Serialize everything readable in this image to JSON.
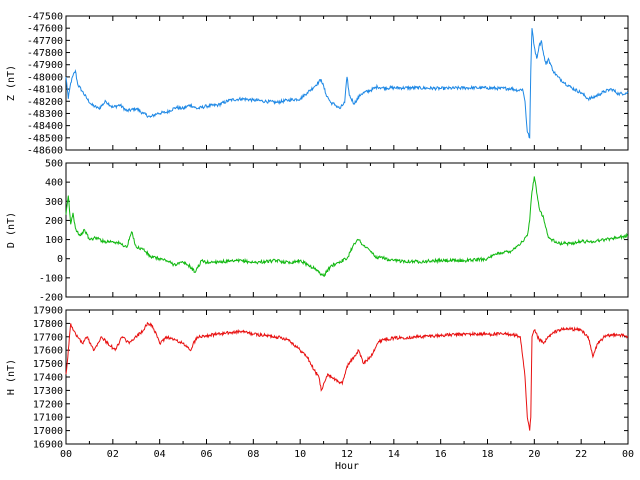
{
  "chart_data": [
    {
      "type": "line",
      "ylabel": "Z (nT)",
      "ylim": [
        -48600,
        -47500
      ],
      "yticks": [
        -47500,
        -47600,
        -47700,
        -47800,
        -47900,
        -48000,
        -48100,
        -48200,
        -48300,
        -48400,
        -48500,
        -48600
      ],
      "xlim": [
        0,
        24
      ],
      "color": "#1E88E5",
      "series": [
        {
          "x": [
            0,
            0.1,
            0.2,
            0.3,
            0.4,
            0.5,
            0.7,
            0.9,
            1.1,
            1.4,
            1.7,
            2,
            2.3,
            2.6,
            3,
            3.3,
            3.6,
            3.9,
            4.3,
            4.7,
            5,
            5.3,
            5.6,
            6,
            6.5,
            7,
            7.5,
            8,
            8.5,
            9,
            9.5,
            10,
            10.3,
            10.6,
            10.9,
            11.1,
            11.3,
            11.5,
            11.7,
            11.9,
            12,
            12.1,
            12.3,
            12.6,
            13,
            13.3,
            13.5,
            14,
            15,
            16,
            17,
            18,
            18.5,
            19,
            19.3,
            19.5,
            19.6,
            19.7,
            19.8,
            19.85,
            19.9,
            20,
            20.1,
            20.2,
            20.3,
            20.4,
            20.5,
            20.6,
            20.8,
            21,
            21.3,
            21.6,
            22,
            22.3,
            22.5,
            22.8,
            23,
            23.3,
            23.6,
            24
          ],
          "y": [
            -48000,
            -48180,
            -48050,
            -47990,
            -47950,
            -48060,
            -48120,
            -48180,
            -48230,
            -48260,
            -48200,
            -48250,
            -48230,
            -48280,
            -48260,
            -48300,
            -48330,
            -48300,
            -48290,
            -48250,
            -48260,
            -48230,
            -48260,
            -48240,
            -48230,
            -48190,
            -48180,
            -48190,
            -48200,
            -48210,
            -48190,
            -48180,
            -48130,
            -48080,
            -48020,
            -48140,
            -48210,
            -48230,
            -48260,
            -48210,
            -48000,
            -48150,
            -48220,
            -48140,
            -48110,
            -48080,
            -48090,
            -48090,
            -48090,
            -48095,
            -48090,
            -48090,
            -48095,
            -48095,
            -48110,
            -48100,
            -48200,
            -48450,
            -48500,
            -47950,
            -47600,
            -47750,
            -47850,
            -47750,
            -47700,
            -47820,
            -47900,
            -47850,
            -47950,
            -48000,
            -48050,
            -48090,
            -48130,
            -48180,
            -48170,
            -48140,
            -48120,
            -48100,
            -48140,
            -48130
          ]
        }
      ]
    },
    {
      "type": "line",
      "ylabel": "D (nT)",
      "ylim": [
        -200,
        500
      ],
      "yticks": [
        500,
        400,
        300,
        200,
        100,
        0,
        -100,
        -200
      ],
      "xlim": [
        0,
        24
      ],
      "color": "#10B810",
      "series": [
        {
          "x": [
            0,
            0.1,
            0.2,
            0.3,
            0.4,
            0.6,
            0.8,
            1,
            1.3,
            1.6,
            2,
            2.3,
            2.6,
            2.8,
            3,
            3.3,
            3.6,
            4,
            4.3,
            4.6,
            5,
            5.3,
            5.5,
            5.8,
            6,
            6.5,
            7,
            7.5,
            8,
            8.5,
            9,
            9.5,
            10,
            10.3,
            10.6,
            10.9,
            11,
            11.3,
            11.6,
            12,
            12.3,
            12.5,
            12.7,
            13,
            13.3,
            13.5,
            13.8,
            14,
            15,
            16,
            17,
            18,
            18.5,
            19,
            19.3,
            19.5,
            19.7,
            19.8,
            19.9,
            20,
            20.2,
            20.4,
            20.6,
            21,
            21.5,
            22,
            22.5,
            23,
            23.5,
            24
          ],
          "y": [
            230,
            330,
            180,
            240,
            160,
            120,
            150,
            100,
            110,
            90,
            90,
            80,
            60,
            140,
            60,
            50,
            10,
            0,
            -10,
            -30,
            -20,
            -40,
            -70,
            -10,
            -20,
            -15,
            -15,
            -10,
            -20,
            -15,
            -10,
            -20,
            -10,
            -30,
            -50,
            -80,
            -90,
            -40,
            -20,
            0,
            80,
            100,
            70,
            40,
            0,
            10,
            -10,
            -10,
            -15,
            -10,
            -10,
            0,
            30,
            40,
            70,
            90,
            120,
            200,
            350,
            430,
            270,
            210,
            110,
            80,
            80,
            90,
            90,
            100,
            110,
            120
          ]
        }
      ]
    },
    {
      "type": "line",
      "ylabel": "H (nT)",
      "ylim": [
        16900,
        17900
      ],
      "yticks": [
        17900,
        17800,
        17700,
        17600,
        17500,
        17400,
        17300,
        17200,
        17100,
        17000,
        16900
      ],
      "xlim": [
        0,
        24
      ],
      "xticks": [
        "00",
        "02",
        "04",
        "06",
        "08",
        "10",
        "12",
        "14",
        "16",
        "18",
        "20",
        "22",
        "00"
      ],
      "xlabel": "Hour",
      "color": "#E81010",
      "series": [
        {
          "x": [
            0,
            0.1,
            0.2,
            0.3,
            0.5,
            0.7,
            0.9,
            1.2,
            1.5,
            1.8,
            2.1,
            2.4,
            2.7,
            3,
            3.3,
            3.5,
            3.7,
            4,
            4.3,
            4.6,
            5,
            5.3,
            5.6,
            6,
            6.5,
            7,
            7.5,
            8,
            8.5,
            9,
            9.5,
            10,
            10.3,
            10.6,
            10.8,
            10.9,
            11,
            11.2,
            11.5,
            11.8,
            12,
            12.3,
            12.5,
            12.7,
            13,
            13.3,
            13.5,
            14,
            15,
            16,
            17,
            18,
            19,
            19.4,
            19.6,
            19.7,
            19.8,
            19.85,
            19.9,
            20,
            20.2,
            20.4,
            20.6,
            21,
            21.5,
            22,
            22.3,
            22.5,
            22.7,
            23,
            23.5,
            24
          ],
          "y": [
            17420,
            17600,
            17800,
            17750,
            17700,
            17650,
            17700,
            17600,
            17700,
            17650,
            17600,
            17700,
            17650,
            17700,
            17750,
            17800,
            17780,
            17650,
            17700,
            17680,
            17650,
            17600,
            17700,
            17710,
            17720,
            17730,
            17740,
            17720,
            17710,
            17700,
            17680,
            17600,
            17550,
            17450,
            17400,
            17300,
            17350,
            17420,
            17380,
            17350,
            17480,
            17550,
            17600,
            17500,
            17550,
            17650,
            17680,
            17690,
            17700,
            17710,
            17720,
            17720,
            17720,
            17700,
            17400,
            17100,
            17000,
            17100,
            17700,
            17750,
            17680,
            17650,
            17700,
            17750,
            17760,
            17750,
            17700,
            17550,
            17650,
            17700,
            17720,
            17700
          ]
        }
      ]
    }
  ]
}
